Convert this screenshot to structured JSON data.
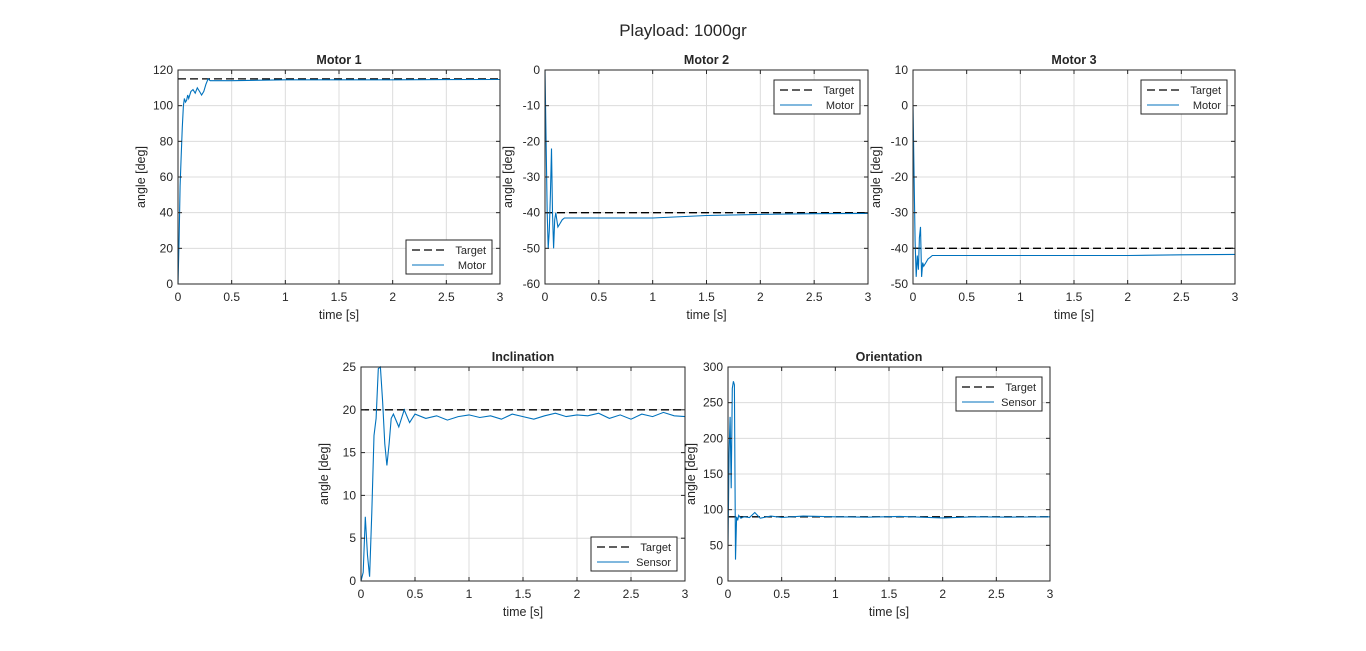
{
  "figure": {
    "title": "Playload: 1000gr"
  },
  "colors": {
    "target": "#000000",
    "series": "#0072BD",
    "grid": "#dcdcdc",
    "axis": "#262626",
    "background": "#ffffff"
  },
  "chart_data": [
    {
      "type": "line",
      "title": "Motor 1",
      "xlabel": "time [s]",
      "ylabel": "angle [deg]",
      "xlim": [
        0,
        3
      ],
      "ylim": [
        0,
        120
      ],
      "xticks": [
        0,
        0.5,
        1,
        1.5,
        2,
        2.5,
        3
      ],
      "yticks": [
        0,
        20,
        40,
        60,
        80,
        100,
        120
      ],
      "grid": true,
      "legend_position": "bottom-right",
      "series": [
        {
          "name": "Target",
          "style": "dashed",
          "x": [
            0,
            3
          ],
          "y": [
            115,
            115
          ]
        },
        {
          "name": "Motor",
          "style": "solid",
          "x": [
            0,
            0.01,
            0.02,
            0.03,
            0.04,
            0.05,
            0.06,
            0.07,
            0.08,
            0.09,
            0.1,
            0.12,
            0.14,
            0.16,
            0.18,
            0.2,
            0.22,
            0.24,
            0.26,
            0.28,
            0.3,
            0.5,
            1,
            1.5,
            2,
            2.5,
            3
          ],
          "y": [
            0,
            25,
            55,
            72,
            88,
            100,
            104,
            102,
            103,
            106,
            104,
            108,
            109,
            107,
            110,
            108,
            106,
            108,
            112,
            115,
            114,
            114,
            114.5,
            114.5,
            114.5,
            114.6,
            114.7
          ]
        }
      ]
    },
    {
      "type": "line",
      "title": "Motor 2",
      "xlabel": "time [s]",
      "ylabel": "angle [deg]",
      "xlim": [
        0,
        3
      ],
      "ylim": [
        -60,
        0
      ],
      "xticks": [
        0,
        0.5,
        1,
        1.5,
        2,
        2.5,
        3
      ],
      "yticks": [
        -60,
        -50,
        -40,
        -30,
        -20,
        -10,
        0
      ],
      "grid": true,
      "legend_position": "top-right",
      "series": [
        {
          "name": "Target",
          "style": "dashed",
          "x": [
            0,
            3
          ],
          "y": [
            -40,
            -40
          ]
        },
        {
          "name": "Motor",
          "style": "solid",
          "x": [
            0,
            0.01,
            0.02,
            0.03,
            0.04,
            0.05,
            0.06,
            0.07,
            0.08,
            0.09,
            0.1,
            0.11,
            0.12,
            0.14,
            0.16,
            0.18,
            0.2,
            0.3,
            0.5,
            1,
            1.5,
            2,
            2.5,
            3
          ],
          "y": [
            0,
            -20,
            -40,
            -50,
            -45,
            -35,
            -22,
            -40,
            -50,
            -42,
            -40,
            -42,
            -44,
            -43,
            -42,
            -41.5,
            -41.5,
            -41.5,
            -41.5,
            -41.5,
            -40.8,
            -40.5,
            -40.3,
            -40.2
          ]
        }
      ]
    },
    {
      "type": "line",
      "title": "Motor 3",
      "xlabel": "time [s]",
      "ylabel": "angle [deg]",
      "xlim": [
        0,
        3
      ],
      "ylim": [
        -50,
        10
      ],
      "xticks": [
        0,
        0.5,
        1,
        1.5,
        2,
        2.5,
        3
      ],
      "yticks": [
        -50,
        -40,
        -30,
        -20,
        -10,
        0,
        10
      ],
      "grid": true,
      "legend_position": "top-right",
      "series": [
        {
          "name": "Target",
          "style": "dashed",
          "x": [
            0,
            3
          ],
          "y": [
            -40,
            -40
          ]
        },
        {
          "name": "Motor",
          "style": "solid",
          "x": [
            0,
            0.01,
            0.02,
            0.03,
            0.04,
            0.05,
            0.06,
            0.07,
            0.08,
            0.09,
            0.1,
            0.12,
            0.14,
            0.16,
            0.18,
            0.2,
            0.3,
            0.5,
            1,
            1.5,
            2,
            2.5,
            3
          ],
          "y": [
            0,
            -20,
            -38,
            -48,
            -42,
            -46,
            -37,
            -34,
            -48,
            -44,
            -45,
            -44,
            -43,
            -42.5,
            -42,
            -42,
            -42,
            -42,
            -42,
            -42,
            -42,
            -41.8,
            -41.7
          ]
        }
      ]
    },
    {
      "type": "line",
      "title": "Inclination",
      "xlabel": "time [s]",
      "ylabel": "angle [deg]",
      "xlim": [
        0,
        3
      ],
      "ylim": [
        0,
        25
      ],
      "xticks": [
        0,
        0.5,
        1,
        1.5,
        2,
        2.5,
        3
      ],
      "yticks": [
        0,
        5,
        10,
        15,
        20,
        25
      ],
      "grid": true,
      "legend_position": "bottom-right",
      "series": [
        {
          "name": "Target",
          "style": "dashed",
          "x": [
            0,
            3
          ],
          "y": [
            20,
            20
          ]
        },
        {
          "name": "Sensor",
          "style": "solid",
          "x": [
            0,
            0.02,
            0.04,
            0.06,
            0.08,
            0.1,
            0.12,
            0.14,
            0.16,
            0.18,
            0.2,
            0.22,
            0.24,
            0.26,
            0.28,
            0.3,
            0.35,
            0.4,
            0.45,
            0.5,
            0.6,
            0.7,
            0.8,
            0.9,
            1,
            1.1,
            1.2,
            1.3,
            1.4,
            1.5,
            1.6,
            1.7,
            1.8,
            1.9,
            2,
            2.1,
            2.2,
            2.3,
            2.4,
            2.5,
            2.6,
            2.7,
            2.8,
            2.9,
            3
          ],
          "y": [
            0,
            1,
            7.5,
            3,
            0.5,
            8,
            17,
            19,
            24.8,
            25,
            21,
            16,
            13.5,
            16,
            19,
            19.5,
            18,
            20,
            18.5,
            19.5,
            19,
            19.3,
            18.8,
            19.2,
            19.4,
            19.1,
            19.3,
            18.9,
            19.5,
            19.2,
            18.9,
            19.3,
            19.6,
            19.2,
            19.4,
            19.3,
            19.6,
            19,
            19.4,
            18.9,
            19.5,
            19.2,
            19.7,
            19.3,
            19.2
          ]
        }
      ]
    },
    {
      "type": "line",
      "title": "Orientation",
      "xlabel": "time [s]",
      "ylabel": "angle [deg]",
      "xlim": [
        0,
        3
      ],
      "ylim": [
        0,
        300
      ],
      "xticks": [
        0,
        0.5,
        1,
        1.5,
        2,
        2.5,
        3
      ],
      "yticks": [
        0,
        50,
        100,
        150,
        200,
        250,
        300
      ],
      "grid": true,
      "legend_position": "top-right",
      "series": [
        {
          "name": "Target",
          "style": "dashed",
          "x": [
            0,
            3
          ],
          "y": [
            90,
            90
          ]
        },
        {
          "name": "Sensor",
          "style": "solid",
          "x": [
            0,
            0.01,
            0.02,
            0.03,
            0.04,
            0.05,
            0.06,
            0.07,
            0.08,
            0.09,
            0.1,
            0.12,
            0.15,
            0.2,
            0.25,
            0.3,
            0.4,
            0.5,
            0.7,
            1,
            1.3,
            1.6,
            2,
            2.3,
            2.6,
            3
          ],
          "y": [
            50,
            180,
            230,
            130,
            270,
            280,
            275,
            30,
            90,
            85,
            92,
            88,
            90,
            89,
            96,
            88,
            91,
            89,
            91,
            90,
            89.5,
            90.5,
            88.5,
            90,
            89.5,
            90
          ]
        }
      ]
    }
  ]
}
